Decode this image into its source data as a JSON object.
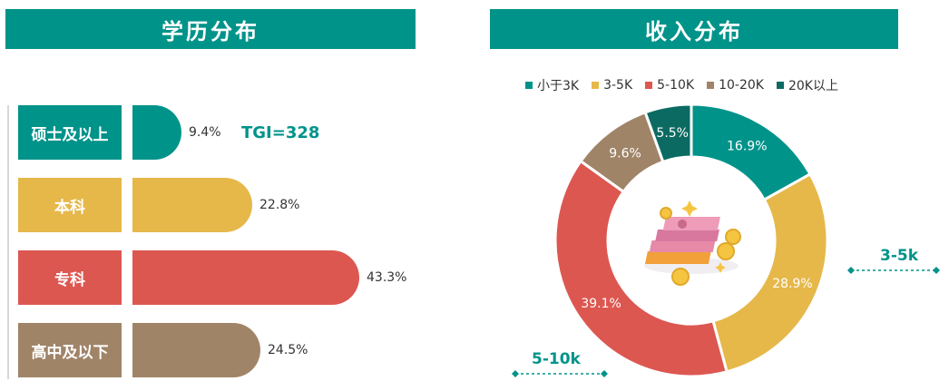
{
  "left_title": "学历分布",
  "right_title": "收入分布",
  "tgi_label": "TGI=328",
  "chart_data": [
    {
      "type": "bar",
      "title": "学历分布",
      "categories": [
        "硕士及以上",
        "本科",
        "专科",
        "高中及以下"
      ],
      "values": [
        9.4,
        22.8,
        43.3,
        24.5
      ],
      "value_labels": [
        "9.4%",
        "22.8%",
        "43.3%",
        "24.5%"
      ],
      "colors": [
        "#00938a",
        "#e6b84a",
        "#dd5751",
        "#a08468"
      ],
      "unit": "%"
    },
    {
      "type": "pie",
      "title": "收入分布",
      "categories": [
        "小于3K",
        "3-5K",
        "5-10K",
        "10-20K",
        "20K以上"
      ],
      "values": [
        16.9,
        28.9,
        39.1,
        9.6,
        5.5
      ],
      "value_labels": [
        "16.9%",
        "28.9%",
        "39.1%",
        "9.6%",
        "5.5%"
      ],
      "colors": [
        "#00938a",
        "#e6b84a",
        "#dd5751",
        "#a08468",
        "#0b6b62"
      ],
      "legend_position": "top"
    }
  ],
  "callouts": [
    "3-5k",
    "5-10k"
  ]
}
